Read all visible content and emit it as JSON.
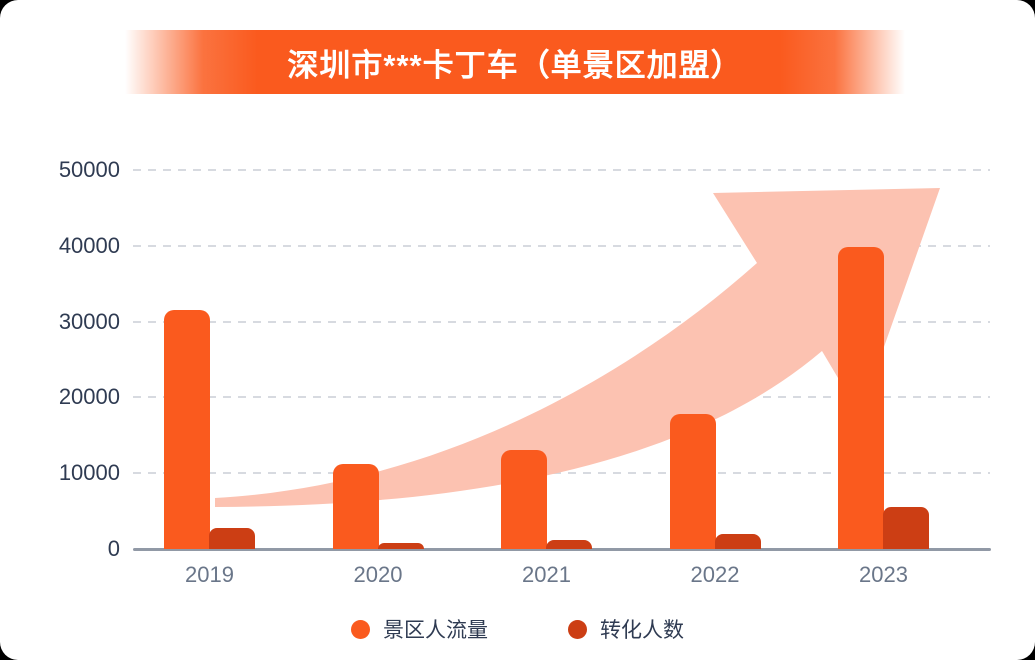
{
  "banner": {
    "title": "深圳市***卡丁车（单景区加盟）"
  },
  "chart_data": {
    "type": "bar",
    "title": "深圳市***卡丁车（单景区加盟）",
    "categories": [
      "2019",
      "2020",
      "2021",
      "2022",
      "2023"
    ],
    "series": [
      {
        "name": "景区人流量",
        "color": "#FA5A1E",
        "values": [
          31500,
          11200,
          13000,
          17800,
          39800
        ]
      },
      {
        "name": "转化人数",
        "color": "#CC3E14",
        "values": [
          2800,
          800,
          1200,
          2000,
          5500
        ]
      }
    ],
    "xlabel": "",
    "ylabel": "",
    "ylim": [
      0,
      50000
    ],
    "yticks": [
      0,
      10000,
      20000,
      30000,
      40000,
      50000
    ],
    "grid": "horizontal-dashed",
    "legend_position": "bottom",
    "annotation": "rising-trend-arrow"
  },
  "colors": {
    "accent_orange": "#FA5A1E",
    "accent_dark_orange": "#CC3E14",
    "trend_arrow": "#FCC2B1",
    "grid_line": "#D7DAE0",
    "axis_line": "#9199A6",
    "y_tick_text": "#2F3B52",
    "x_tick_text": "#6A7689",
    "legend_text": "#2F3B52",
    "banner_text": "#FFFFFF",
    "card_background": "#FFFFFF",
    "page_background": "#000000"
  }
}
